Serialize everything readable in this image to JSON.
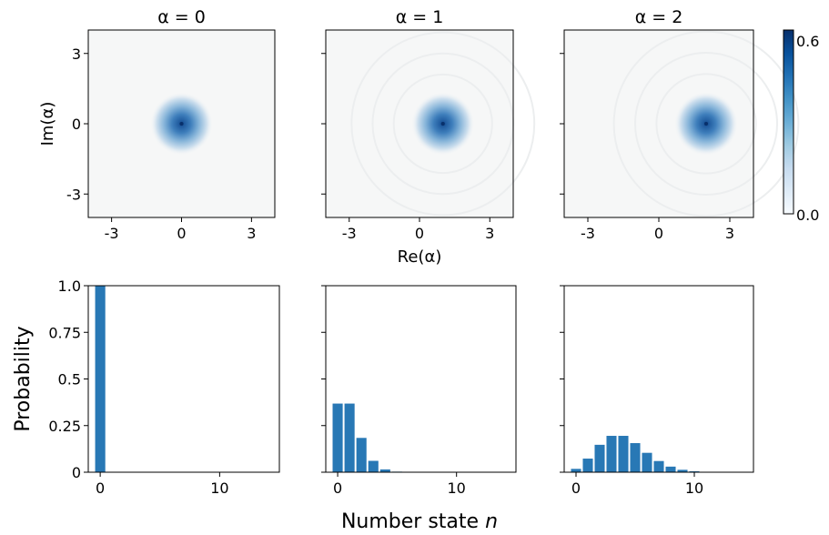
{
  "chart_data": [
    {
      "type": "heatmap",
      "panel": "top-left",
      "title": "α = 0",
      "alpha": 0,
      "center": [
        0,
        0
      ],
      "xlabel": "",
      "ylabel": "Im(α)",
      "xlim": [
        -4,
        4
      ],
      "ylim": [
        -4,
        4
      ],
      "xticks": [
        -3,
        0,
        3
      ],
      "xtick_labels": [
        "-3",
        "0",
        "3"
      ],
      "yticks": [
        -3,
        0,
        3
      ],
      "ytick_labels": [
        "-3",
        "0",
        "3"
      ]
    },
    {
      "type": "heatmap",
      "panel": "top-middle",
      "title": "α = 1",
      "alpha": 1,
      "center": [
        1,
        0
      ],
      "xlabel": "Re(α)",
      "ylabel": "",
      "xlim": [
        -4,
        4
      ],
      "ylim": [
        -4,
        4
      ],
      "xticks": [
        -3,
        0,
        3
      ],
      "xtick_labels": [
        "-3",
        "0",
        "3"
      ],
      "yticks": [
        -3,
        0,
        3
      ],
      "ytick_labels": []
    },
    {
      "type": "heatmap",
      "panel": "top-right",
      "title": "α = 2",
      "alpha": 2,
      "center": [
        2,
        0
      ],
      "xlabel": "",
      "ylabel": "",
      "xlim": [
        -4,
        4
      ],
      "ylim": [
        -4,
        4
      ],
      "xticks": [
        -3,
        0,
        3
      ],
      "xtick_labels": [
        "-3",
        "0",
        "3"
      ],
      "yticks": [
        -3,
        0,
        3
      ],
      "ytick_labels": []
    },
    {
      "type": "bar",
      "panel": "bottom-left",
      "xlabel": "",
      "ylabel": "Probability",
      "x": [
        0,
        1,
        2,
        3,
        4,
        5,
        6,
        7,
        8,
        9,
        10,
        11,
        12,
        13,
        14
      ],
      "values": [
        1.0,
        0,
        0,
        0,
        0,
        0,
        0,
        0,
        0,
        0,
        0,
        0,
        0,
        0,
        0
      ],
      "xlim": [
        -1,
        15
      ],
      "ylim": [
        0,
        1
      ],
      "xticks": [
        0,
        10
      ],
      "xtick_labels": [
        "0",
        "10"
      ],
      "yticks": [
        0,
        0.25,
        0.5,
        0.75,
        1.0
      ],
      "ytick_labels": [
        "0",
        "0.25",
        "0.5",
        "0.75",
        "1.0"
      ]
    },
    {
      "type": "bar",
      "panel": "bottom-middle",
      "xlabel": "",
      "ylabel": "",
      "x": [
        0,
        1,
        2,
        3,
        4,
        5,
        6,
        7,
        8,
        9,
        10,
        11,
        12,
        13,
        14
      ],
      "values": [
        0.368,
        0.368,
        0.184,
        0.061,
        0.015,
        0.003,
        0.001,
        0,
        0,
        0,
        0,
        0,
        0,
        0,
        0
      ],
      "xlim": [
        -1,
        15
      ],
      "ylim": [
        0,
        1
      ],
      "xticks": [
        0,
        10
      ],
      "xtick_labels": [
        "0",
        "10"
      ],
      "yticks": [
        0,
        0.25,
        0.5,
        0.75,
        1.0
      ],
      "ytick_labels": []
    },
    {
      "type": "bar",
      "panel": "bottom-right",
      "xlabel": "",
      "ylabel": "",
      "x": [
        0,
        1,
        2,
        3,
        4,
        5,
        6,
        7,
        8,
        9,
        10,
        11,
        12,
        13,
        14
      ],
      "values": [
        0.018,
        0.073,
        0.147,
        0.195,
        0.195,
        0.156,
        0.104,
        0.06,
        0.03,
        0.013,
        0.005,
        0.002,
        0.001,
        0,
        0
      ],
      "xlim": [
        -1,
        15
      ],
      "ylim": [
        0,
        1
      ],
      "xticks": [
        0,
        10
      ],
      "xtick_labels": [
        "0",
        "10"
      ],
      "yticks": [
        0,
        0.25,
        0.5,
        0.75,
        1.0
      ],
      "ytick_labels": []
    }
  ],
  "colorbar": {
    "min": 0.0,
    "max": 0.6,
    "min_label": "0.0",
    "max_label": "0.6",
    "colormap": "Blues"
  },
  "figure": {
    "xlabel": "Number state n",
    "xlabel_text": "Number state ",
    "xlabel_var": "n"
  },
  "colors": {
    "bar": "#2878b5",
    "map_background": "#f6f7f7",
    "map_peak": "#08306b"
  }
}
